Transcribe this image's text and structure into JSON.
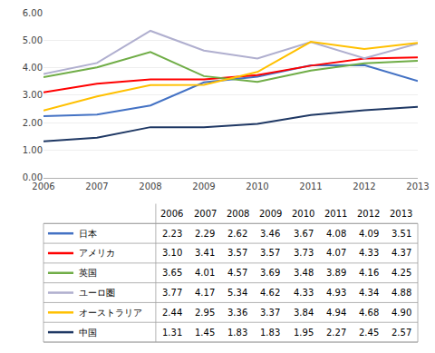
{
  "chart_data": {
    "type": "line",
    "categories": [
      2006,
      2007,
      2008,
      2009,
      2010,
      2011,
      2012,
      2013
    ],
    "series": [
      {
        "name": "日本",
        "color": "#4472C4",
        "values": [
          2.23,
          2.29,
          2.62,
          3.46,
          3.67,
          4.08,
          4.09,
          3.51
        ],
        "value_labels": [
          "2.23",
          "2.29",
          "2.62",
          "3.46",
          "3.67",
          "4.08",
          "4.09",
          "3.51"
        ]
      },
      {
        "name": "アメリカ",
        "color": "#FF0000",
        "values": [
          3.1,
          3.41,
          3.57,
          3.57,
          3.73,
          4.07,
          4.33,
          4.37
        ],
        "value_labels": [
          "3.10",
          "3.41",
          "3.57",
          "3.57",
          "3.73",
          "4.07",
          "4.33",
          "4.37"
        ]
      },
      {
        "name": "英国",
        "color": "#70AD47",
        "values": [
          3.65,
          4.01,
          4.57,
          3.69,
          3.48,
          3.89,
          4.16,
          4.25
        ],
        "value_labels": [
          "3.65",
          "4.01",
          "4.57",
          "3.69",
          "3.48",
          "3.89",
          "4.16",
          "4.25"
        ]
      },
      {
        "name": "ユーロ圏",
        "color": "#B0AFCF",
        "values": [
          3.77,
          4.17,
          5.34,
          4.62,
          4.33,
          4.93,
          4.34,
          4.88
        ],
        "value_labels": [
          "3.77",
          "4.17",
          "5.34",
          "4.62",
          "4.33",
          "4.93",
          "4.34",
          "4.88"
        ]
      },
      {
        "name": "オーストラリア",
        "color": "#FFC000",
        "values": [
          2.44,
          2.95,
          3.36,
          3.37,
          3.84,
          4.94,
          4.68,
          4.9
        ],
        "value_labels": [
          "2.44",
          "2.95",
          "3.36",
          "3.37",
          "3.84",
          "4.94",
          "4.68",
          "4.90"
        ]
      },
      {
        "name": "中国",
        "color": "#1F3864",
        "values": [
          1.31,
          1.45,
          1.83,
          1.83,
          1.95,
          2.27,
          2.45,
          2.57
        ],
        "value_labels": [
          "1.31",
          "1.45",
          "1.83",
          "1.83",
          "1.95",
          "2.27",
          "2.45",
          "2.57"
        ]
      }
    ],
    "ylim": [
      0.0,
      6.0
    ],
    "yticks": [
      {
        "value": 0,
        "label": "0.00"
      },
      {
        "value": 1,
        "label": "1.00"
      },
      {
        "value": 2,
        "label": "2.00"
      },
      {
        "value": 3,
        "label": "3.00"
      },
      {
        "value": 4,
        "label": "4.00"
      },
      {
        "value": 5,
        "label": "5.00"
      },
      {
        "value": 6,
        "label": "6.00"
      }
    ],
    "grid": true,
    "legend": "bottom"
  }
}
